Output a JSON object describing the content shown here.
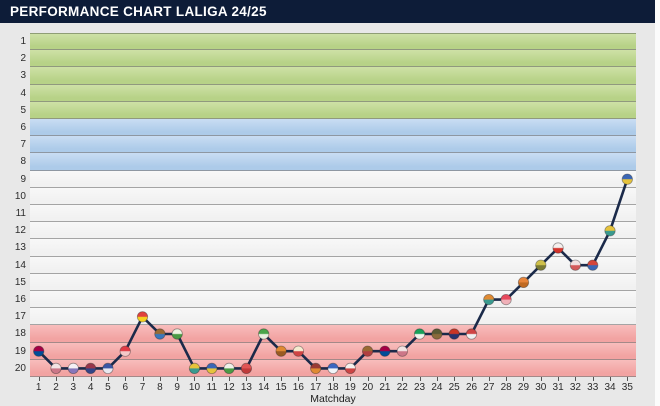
{
  "header": {
    "title": "PERFORMANCE CHART LALIGA 24/25"
  },
  "colors": {
    "header_bg": "#0d1c38",
    "page_bg": "#e8e8e8",
    "grid": "#5f5f5f",
    "axis_text": "#2b2b2b"
  },
  "chart_data": {
    "type": "line",
    "title": "PERFORMANCE CHART LALIGA 24/25",
    "xlabel": "Matchday",
    "ylabel": "",
    "x": [
      1,
      2,
      3,
      4,
      5,
      6,
      7,
      8,
      9,
      10,
      11,
      12,
      13,
      14,
      15,
      16,
      17,
      18,
      19,
      20,
      21,
      22,
      23,
      24,
      25,
      26,
      27,
      28,
      29,
      30,
      31,
      32,
      33,
      34,
      35
    ],
    "positions": [
      19,
      20,
      20,
      20,
      20,
      19,
      17,
      18,
      18,
      20,
      20,
      20,
      20,
      18,
      19,
      19,
      20,
      20,
      20,
      19,
      19,
      19,
      18,
      18,
      18,
      18,
      16,
      16,
      15,
      14,
      13,
      14,
      14,
      12,
      9
    ],
    "ylim": [
      1,
      20
    ],
    "xlim": [
      1,
      35
    ],
    "y_axis_reversed": true,
    "grid": true,
    "line_color": "#1b2a4a",
    "marker_style": "club-crest-icons",
    "zones": [
      {
        "name": "top-zone-green",
        "rows": [
          1,
          5
        ],
        "color": "#b7d287",
        "light": "#cee1a6"
      },
      {
        "name": "mid-zone-blue",
        "rows": [
          6,
          8
        ],
        "color": "#adcbe9",
        "light": "#c9ddf3"
      },
      {
        "name": "neutral-zone",
        "rows": [
          9,
          17
        ],
        "color": "#f1f1f1",
        "light": "#f8f8f8"
      },
      {
        "name": "relegation-zone-red",
        "rows": [
          18,
          20
        ],
        "color": "#f2a3a2",
        "light": "#f8bdbc"
      }
    ],
    "crest_colors": [
      [
        "#a50044",
        "#004d98"
      ],
      [
        "#f2e4e4",
        "#cc7788"
      ],
      [
        "#f5f0f5",
        "#8877bb"
      ],
      [
        "#99354a",
        "#334488"
      ],
      [
        "#3a57a5",
        "#e8e8f0"
      ],
      [
        "#e23b46",
        "#f5c8c8"
      ],
      [
        "#e0413d",
        "#f5d020"
      ],
      [
        "#9a6a33",
        "#3a77bb"
      ],
      [
        "#eef3e2",
        "#4a9a44"
      ],
      [
        "#e6c33c",
        "#3a9a8f"
      ],
      [
        "#3a66b5",
        "#e6c33c"
      ],
      [
        "#f0f0ea",
        "#4a9a44"
      ],
      [
        "#e05555",
        "#c03a3a"
      ],
      [
        "#4aa54a",
        "#e8f0e0"
      ],
      [
        "#e08a33",
        "#9a5a22"
      ],
      [
        "#f5ecd0",
        "#d04444"
      ],
      [
        "#9a3a33",
        "#e08a33"
      ],
      [
        "#3a66c0",
        "#f0f4f8"
      ],
      [
        "#f5f0ee",
        "#cc4444"
      ],
      [
        "#9a6a33",
        "#b04040"
      ],
      [
        "#a50044",
        "#004d98"
      ],
      [
        "#f2e4e4",
        "#cc7788"
      ],
      [
        "#18a05a",
        "#f0f5ee"
      ],
      [
        "#5a5a33",
        "#8a6a3a"
      ],
      [
        "#cb3524",
        "#28336e"
      ],
      [
        "#d04444",
        "#f0f0f0"
      ],
      [
        "#e08a33",
        "#3a9a8f"
      ],
      [
        "#e84a5e",
        "#f0b0b8"
      ],
      [
        "#e8853a",
        "#c06a22"
      ],
      [
        "#cfc04a",
        "#7a7a33"
      ],
      [
        "#f5f0ee",
        "#d4342c"
      ],
      [
        "#f2e0e0",
        "#d45a5a"
      ],
      [
        "#d4453a",
        "#3a66b5"
      ],
      [
        "#e6c33c",
        "#3a9a8f"
      ],
      [
        "#3a66b5",
        "#e6c33c"
      ]
    ]
  }
}
